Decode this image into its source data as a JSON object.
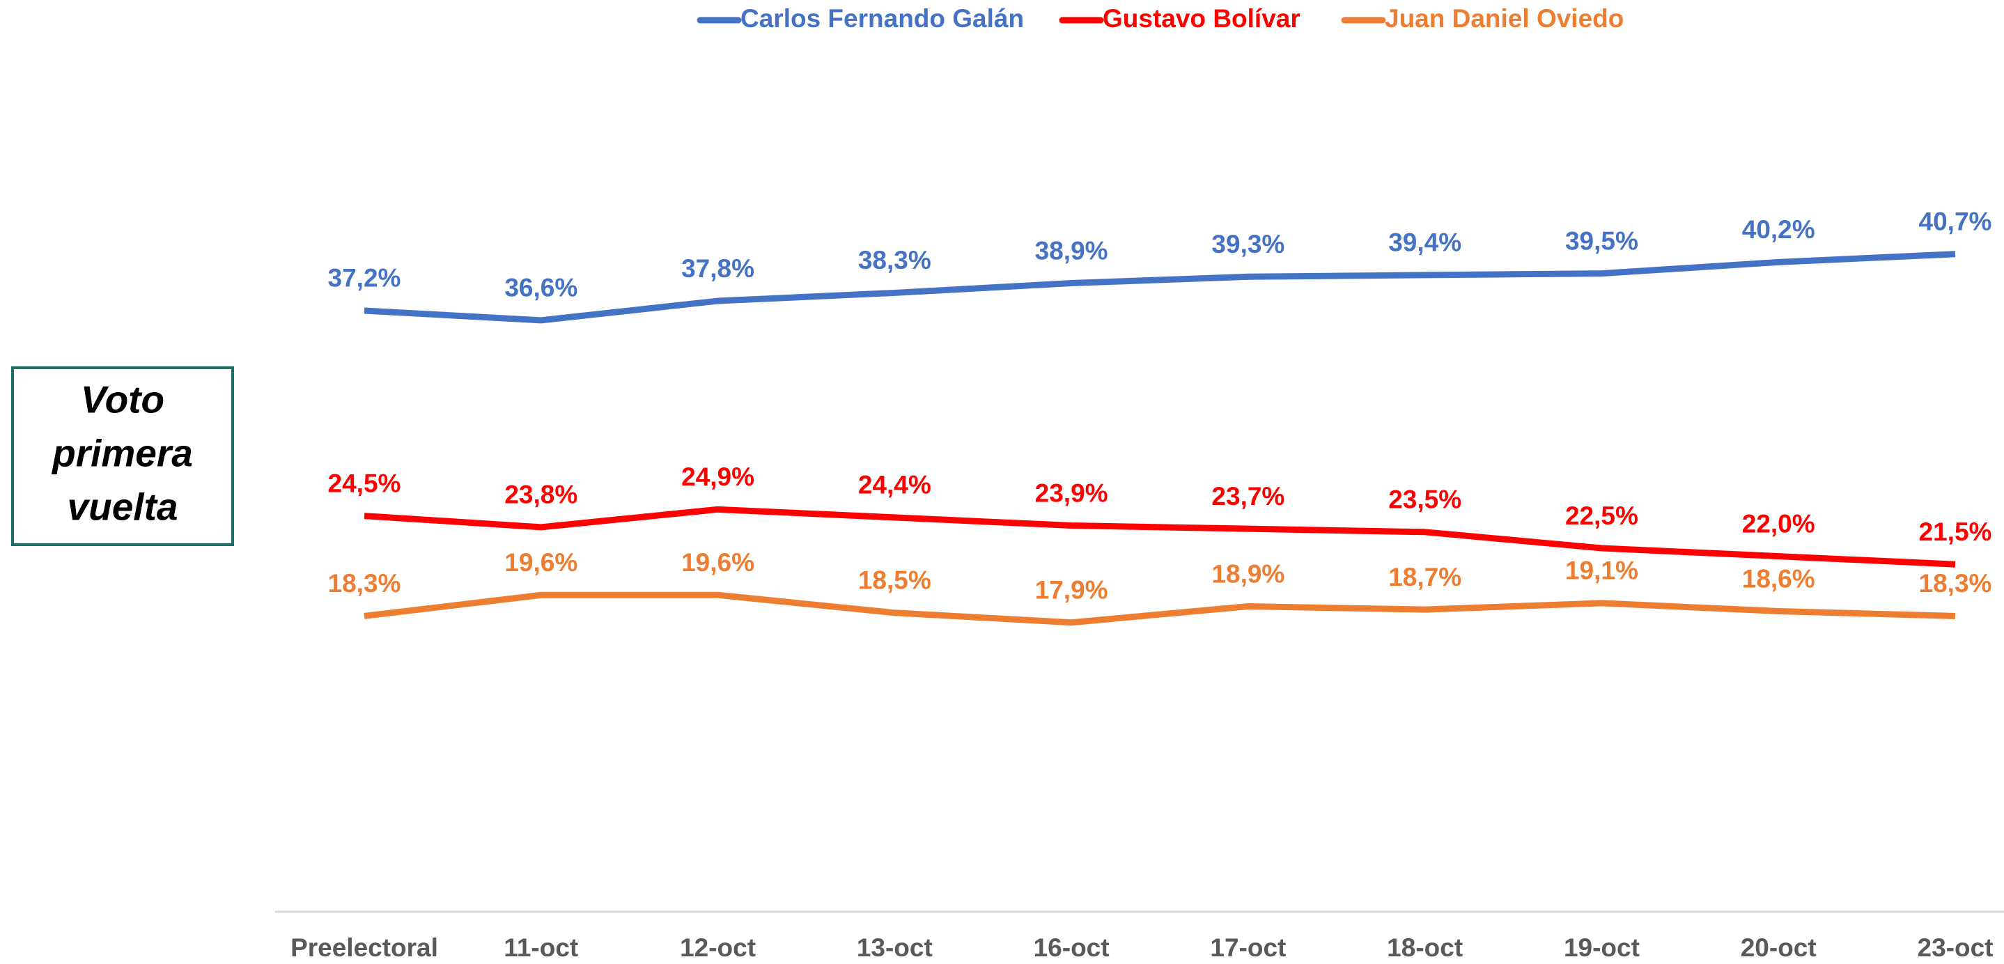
{
  "chart_data": {
    "type": "line",
    "annotation": [
      "Voto",
      "primera",
      "vuelta"
    ],
    "categories": [
      "Preelectoral",
      "11-oct",
      "12-oct",
      "13-oct",
      "16-oct",
      "17-oct",
      "18-oct",
      "19-oct",
      "20-oct",
      "23-oct"
    ],
    "ylim": [
      0,
      50
    ],
    "series": [
      {
        "name": "Carlos Fernando Galán",
        "color": "#4472c4",
        "values": [
          37.2,
          36.6,
          37.8,
          38.3,
          38.9,
          39.3,
          39.4,
          39.5,
          40.2,
          40.7
        ],
        "value_labels": [
          "37,2%",
          "36,6%",
          "37,8%",
          "38,3%",
          "38,9%",
          "39,3%",
          "39,4%",
          "39,5%",
          "40,2%",
          "40,7%"
        ]
      },
      {
        "name": "Gustavo Bolívar",
        "color": "#ff0000",
        "values": [
          24.5,
          23.8,
          24.9,
          24.4,
          23.9,
          23.7,
          23.5,
          22.5,
          22.0,
          21.5
        ],
        "value_labels": [
          "24,5%",
          "23,8%",
          "24,9%",
          "24,4%",
          "23,9%",
          "23,7%",
          "23,5%",
          "22,5%",
          "22,0%",
          "21,5%"
        ]
      },
      {
        "name": "Juan Daniel Oviedo",
        "color": "#ed7d31",
        "values": [
          18.3,
          19.6,
          19.6,
          18.5,
          17.9,
          18.9,
          18.7,
          19.1,
          18.6,
          18.3
        ],
        "value_labels": [
          "18,3%",
          "19,6%",
          "19,6%",
          "18,5%",
          "17,9%",
          "18,9%",
          "18,7%",
          "19,1%",
          "18,6%",
          "18,3%"
        ]
      }
    ]
  }
}
